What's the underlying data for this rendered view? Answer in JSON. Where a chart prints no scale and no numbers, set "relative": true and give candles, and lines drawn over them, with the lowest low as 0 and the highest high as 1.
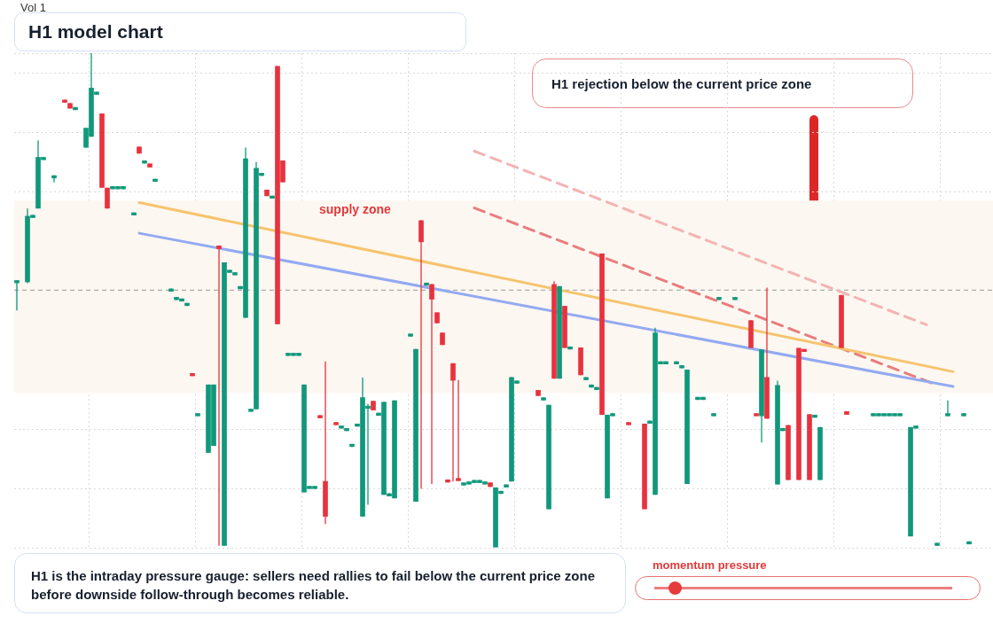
{
  "chart_data": {
    "type": "candlestick",
    "title": "H1 model chart",
    "relative": true,
    "grid": true,
    "legend": false,
    "colors": [
      "#12987b",
      null,
      "#12987b",
      "#12987b",
      "#12987b",
      "#12987b",
      null,
      "#12987b",
      null,
      "#e8333f",
      "#e8333f",
      "#12987b",
      null,
      "#12987b",
      "#12987b",
      "#12987b",
      "#e8333f",
      "#e8333f",
      "#12987b",
      "#12987b",
      "#12987b",
      null,
      "#12987b",
      "#e8333f",
      "#12987b",
      "#e8333f",
      "#12987b",
      null,
      null,
      "#12987b",
      "#12987b",
      "#12987b",
      "#12987b",
      "#e8333f",
      "#12987b",
      null,
      "#12987b",
      "#12987b",
      "#e8333f",
      "#12987b",
      "#12987b",
      "#12987b",
      "#12987b",
      "#12987b",
      "#12987b",
      "#12987b",
      "#12987b",
      "#e8333f",
      "#12987b",
      "#e8333f",
      "#e8333f",
      "#12987b",
      "#12987b",
      "#12987b",
      "#12987b",
      "#12987b",
      "#12987b",
      "#e8333f",
      "#e8333f",
      null,
      "#e8333f",
      "#12987b",
      "#12987b",
      "#12987b",
      "#12987b",
      "#12987b",
      "#12987b",
      "#e8333f",
      "#12987b",
      "#12987b",
      "#12987b",
      "#12987b",
      null,
      null,
      "#12987b",
      "#12987b",
      "#e8333f",
      "#12987b",
      "#e8333f",
      "#e8333f",
      "#e8333f",
      "#e8333f",
      "#e8333f",
      "#e8333f",
      "#12987b",
      "#12987b",
      "#12987b",
      "#12987b",
      "#12987b",
      "#e8333f",
      "#12987b",
      "#12987b",
      "#12987b",
      "#12987b",
      "#12987b",
      null,
      null,
      null,
      "#e8333f",
      "#12987b",
      "#12987b",
      "#e8333f",
      "#12987b",
      "#e8333f",
      "#12987b",
      null,
      "#e8333f",
      "#12987b",
      "#12987b",
      "#12987b",
      "#e8333f",
      "#12987b",
      "#12987b",
      null,
      null,
      "#e8333f",
      null,
      null,
      "#e8333f",
      "#12987b",
      "#12987b",
      "#12987b",
      "#12987b",
      null,
      "#12987b",
      "#12987b",
      "#12987b",
      null,
      "#12987b",
      "#12987b",
      null,
      "#12987b",
      "#12987b",
      null,
      null,
      "#12987b",
      null,
      null,
      "#e8333f",
      "#e8333f",
      "#12987b",
      "#e8333f",
      null,
      "#12987b",
      "#12987b",
      "#e8333f",
      null,
      "#e8333f",
      "#e8333f",
      "#e8333f",
      "#12987b",
      "#12987b",
      null,
      null,
      null,
      "#e8333f",
      "#e8333f",
      null,
      null,
      null,
      null,
      "#12987b",
      "#12987b",
      "#12987b",
      "#12987b",
      "#12987b",
      "#12987b",
      null,
      "#12987b",
      "#12987b",
      null,
      null,
      null,
      "#12987b",
      null,
      "#12987b",
      null,
      null,
      "#12987b",
      "#12987b",
      null,
      null,
      null,
      null
    ],
    "annotations": [
      "Vol 1",
      "H1 rejection below the current price zone",
      "supply zone",
      "momentum pressure",
      "H1 is the intraday pressure gauge: sellers need rallies to fail below the current price zone before downside follow-through becomes reliable."
    ],
    "categories": [
      null,
      null,
      null,
      null,
      null,
      null,
      null,
      null,
      null,
      null,
      null,
      null,
      null,
      null,
      null,
      null,
      null,
      null,
      null,
      null,
      null,
      null,
      null,
      null,
      null,
      null,
      null,
      null,
      null,
      null,
      null,
      null,
      null,
      null,
      null,
      null,
      null,
      null,
      null,
      null,
      null,
      null,
      null,
      null,
      null,
      null,
      null,
      null,
      null,
      null,
      null,
      null,
      null,
      null,
      null,
      null,
      null,
      null,
      null,
      null,
      null,
      null,
      null,
      null,
      null,
      null,
      null,
      null,
      null,
      null,
      null,
      null,
      null,
      null,
      null,
      null,
      null,
      null,
      null,
      null,
      null,
      null,
      null,
      null,
      null,
      null,
      null,
      null,
      null,
      null,
      null,
      null,
      null,
      null,
      null,
      null,
      null,
      null,
      null,
      null,
      null,
      null,
      null,
      null,
      null,
      null,
      null,
      null,
      null,
      null,
      null,
      null,
      null,
      null,
      null,
      null,
      null,
      null,
      null,
      null,
      null,
      null,
      null,
      null,
      null,
      null,
      null,
      null,
      null,
      null,
      null,
      null,
      null,
      null,
      null,
      null,
      null,
      null,
      null,
      null,
      null,
      null,
      null,
      null,
      null,
      null,
      null,
      null,
      null,
      null,
      null,
      null,
      null,
      null,
      null,
      null,
      null,
      null,
      null,
      null,
      null,
      null,
      null,
      null,
      null,
      null,
      null,
      null,
      null,
      null,
      null,
      null,
      null,
      null,
      null,
      null,
      null,
      null,
      null,
      null,
      null,
      null,
      null,
      null
    ],
    "ohlc": [
      [
        0.535,
        0.541,
        0.48,
        0.541
      ],
      null,
      [
        0.537,
        0.686,
        0.535,
        0.671
      ],
      [
        0.667,
        0.673,
        0.667,
        0.673
      ],
      [
        0.686,
        0.824,
        0.686,
        0.79
      ],
      [
        0.784,
        0.79,
        0.784,
        0.79
      ],
      null,
      [
        0.747,
        0.753,
        0.739,
        0.753
      ],
      null,
      [
        0.906,
        0.906,
        0.9,
        0.9
      ],
      [
        0.899,
        0.899,
        0.888,
        0.888
      ],
      [
        0.885,
        0.891,
        0.885,
        0.891
      ],
      null,
      [
        0.809,
        0.849,
        0.809,
        0.849
      ],
      [
        0.831,
        1,
        0.831,
        0.93
      ],
      [
        0.916,
        0.922,
        0.916,
        0.922
      ],
      [
        0.878,
        0.878,
        0.728,
        0.728
      ],
      [
        0.728,
        0.728,
        0.686,
        0.686
      ],
      [
        0.725,
        0.731,
        0.725,
        0.731
      ],
      [
        0.725,
        0.731,
        0.725,
        0.731
      ],
      [
        0.725,
        0.731,
        0.725,
        0.731
      ],
      null,
      [
        0.672,
        0.678,
        0.672,
        0.678
      ],
      [
        0.811,
        0.811,
        0.797,
        0.797
      ],
      [
        0.777,
        0.783,
        0.777,
        0.783
      ],
      [
        0.777,
        0.777,
        0.769,
        0.769
      ],
      [
        0.74,
        0.746,
        0.74,
        0.746
      ],
      null,
      null,
      [
        0.518,
        0.524,
        0.518,
        0.524
      ],
      [
        0.501,
        0.507,
        0.501,
        0.507
      ],
      [
        0.498,
        0.504,
        0.498,
        0.504
      ],
      [
        0.489,
        0.495,
        0.489,
        0.495
      ],
      [
        0.353,
        0.353,
        0.347,
        0.347
      ],
      [
        0.266,
        0.272,
        0.266,
        0.272
      ],
      null,
      [
        0.192,
        0.33,
        0.192,
        0.33
      ],
      [
        0.206,
        0.33,
        0.206,
        0.33
      ],
      [
        0.611,
        0.611,
        0.004,
        0.604
      ],
      [
        0.004,
        0.577,
        0.004,
        0.577
      ],
      [
        0.556,
        0.562,
        0.556,
        0.562
      ],
      [
        0.551,
        0.557,
        0.551,
        0.557
      ],
      [
        0.523,
        0.529,
        0.523,
        0.529
      ],
      [
        0.465,
        0.809,
        0.465,
        0.787
      ],
      [
        0.275,
        0.281,
        0.275,
        0.281
      ],
      [
        0.28,
        0.78,
        0.28,
        0.768
      ],
      [
        0.752,
        0.758,
        0.752,
        0.758
      ],
      [
        0.724,
        0.724,
        0.711,
        0.711
      ],
      [
        0.706,
        0.712,
        0.706,
        0.712
      ],
      [
        0.974,
        0.974,
        0.452,
        0.452
      ],
      [
        0.783,
        0.783,
        0.739,
        0.739
      ],
      [
        0.388,
        0.394,
        0.388,
        0.394
      ],
      [
        0.388,
        0.394,
        0.388,
        0.394
      ],
      [
        0.388,
        0.394,
        0.388,
        0.394
      ],
      [
        0.112,
        0.33,
        0.112,
        0.33
      ],
      [
        0.119,
        0.125,
        0.119,
        0.125
      ],
      [
        0.119,
        0.125,
        0.119,
        0.125
      ],
      [
        0.268,
        0.268,
        0.262,
        0.262
      ],
      [
        0.135,
        0.377,
        0.048,
        0.063
      ],
      null,
      [
        0.254,
        0.254,
        0.248,
        0.248
      ],
      [
        0.241,
        0.247,
        0.241,
        0.247
      ],
      [
        0.236,
        0.242,
        0.236,
        0.242
      ],
      [
        0.204,
        0.21,
        0.204,
        0.21
      ],
      [
        0.245,
        0.251,
        0.245,
        0.251
      ],
      [
        0.063,
        0.344,
        0.063,
        0.304
      ],
      [
        0.281,
        0.291,
        0.087,
        0.287
      ],
      [
        0.297,
        0.297,
        0.278,
        0.278
      ],
      [
        0.267,
        0.273,
        0.267,
        0.273
      ],
      [
        0.107,
        0.295,
        0.107,
        0.295
      ],
      [
        0.104,
        0.11,
        0.104,
        0.11
      ],
      [
        0.1,
        0.298,
        0.1,
        0.298
      ],
      null,
      null,
      [
        0.427,
        0.433,
        0.427,
        0.433
      ],
      [
        0.093,
        0.402,
        0.093,
        0.402
      ],
      [
        0.662,
        0.662,
        0.119,
        0.618
      ],
      [
        0.53,
        0.536,
        0.53,
        0.536
      ],
      [
        0.533,
        0.533,
        0.129,
        0.502
      ],
      [
        0.476,
        0.476,
        0.454,
        0.454
      ],
      [
        0.435,
        0.435,
        0.41,
        0.41
      ],
      [
        0.138,
        0.138,
        0.132,
        0.132
      ],
      [
        0.373,
        0.373,
        0.134,
        0.338
      ],
      [
        0.141,
        0.339,
        0.135,
        0.135
      ],
      [
        0.126,
        0.132,
        0.126,
        0.132
      ],
      [
        0.128,
        0.134,
        0.128,
        0.134
      ],
      [
        0.131,
        0.137,
        0.131,
        0.137
      ],
      [
        0.131,
        0.137,
        0.131,
        0.137
      ],
      [
        0.128,
        0.134,
        0.128,
        0.134
      ],
      [
        0.132,
        0.132,
        0.123,
        0.123
      ],
      [
        0,
        0.122,
        0,
        0.122
      ],
      [
        0.109,
        0.115,
        0.109,
        0.115
      ],
      [
        0.122,
        0.128,
        0.122,
        0.128
      ],
      [
        0.134,
        0.345,
        0.134,
        0.345
      ],
      [
        0.332,
        0.338,
        0.332,
        0.338
      ],
      null,
      null,
      null,
      [
        0.319,
        0.319,
        0.307,
        0.307
      ],
      [
        0.298,
        0.304,
        0.298,
        0.304
      ],
      [
        0.078,
        0.289,
        0.078,
        0.289
      ],
      [
        0.533,
        0.539,
        0.342,
        0.342
      ],
      [
        0.342,
        0.529,
        0.342,
        0.529
      ],
      [
        0.489,
        0.489,
        0.404,
        0.404
      ],
      [
        0.401,
        0.407,
        0.401,
        0.407
      ],
      null,
      [
        0.405,
        0.405,
        0.349,
        0.349
      ],
      [
        0.339,
        0.345,
        0.339,
        0.345
      ],
      [
        0.324,
        0.33,
        0.324,
        0.33
      ],
      [
        0.319,
        0.325,
        0.319,
        0.325
      ],
      [
        0.595,
        0.595,
        0.269,
        0.269
      ],
      [
        0.1,
        0.269,
        0.1,
        0.269
      ],
      [
        0.266,
        0.272,
        0.266,
        0.272
      ],
      null,
      null,
      [
        0.254,
        0.254,
        0.248,
        0.248
      ],
      null,
      null,
      [
        0.251,
        0.251,
        0.078,
        0.078
      ],
      [
        0.251,
        0.257,
        0.251,
        0.257
      ],
      [
        0.107,
        0.445,
        0.107,
        0.435
      ],
      [
        0.371,
        0.377,
        0.371,
        0.377
      ],
      [
        0.371,
        0.377,
        0.371,
        0.377
      ],
      null,
      [
        0.371,
        0.377,
        0.371,
        0.377
      ],
      [
        0.363,
        0.369,
        0.363,
        0.369
      ],
      [
        0.129,
        0.36,
        0.129,
        0.36
      ],
      null,
      [
        0.299,
        0.305,
        0.299,
        0.305
      ],
      [
        0.299,
        0.305,
        0.299,
        0.305
      ],
      null,
      [
        0.266,
        0.272,
        0.266,
        0.272
      ],
      [
        0.501,
        0.507,
        0.501,
        0.507
      ],
      null,
      null,
      [
        0.501,
        0.507,
        0.501,
        0.507
      ],
      null,
      null,
      [
        0.46,
        0.46,
        0.404,
        0.404
      ],
      [
        0.272,
        0.272,
        0.266,
        0.266
      ],
      [
        0.266,
        0.401,
        0.213,
        0.401
      ],
      [
        0.345,
        0.526,
        0.261,
        0.261
      ],
      null,
      [
        0.128,
        0.338,
        0.128,
        0.329
      ],
      [
        0.236,
        0.242,
        0.236,
        0.242
      ],
      [
        0.248,
        0.248,
        0.137,
        0.137
      ],
      null,
      [
        0.404,
        0.404,
        0.137,
        0.137
      ],
      [
        0.402,
        0.402,
        0.396,
        0.396
      ],
      [
        0.27,
        0.27,
        0.137,
        0.137
      ],
      [
        0.263,
        0.269,
        0.263,
        0.269
      ],
      [
        0.137,
        0.244,
        0.137,
        0.244
      ],
      null,
      null,
      null,
      [
        0.511,
        0.511,
        0.404,
        0.404
      ],
      [
        0.276,
        0.276,
        0.269,
        0.269
      ],
      null,
      null,
      null,
      null,
      [
        0.266,
        0.272,
        0.266,
        0.272
      ],
      [
        0.266,
        0.272,
        0.266,
        0.272
      ],
      [
        0.266,
        0.272,
        0.266,
        0.272
      ],
      [
        0.266,
        0.272,
        0.266,
        0.272
      ],
      [
        0.266,
        0.272,
        0.266,
        0.272
      ],
      [
        0.266,
        0.272,
        0.266,
        0.272
      ],
      null,
      [
        0.023,
        0.244,
        0.023,
        0.244
      ],
      [
        0.241,
        0.247,
        0.241,
        0.247
      ],
      null,
      null,
      null,
      [
        0.004,
        0.01,
        0.004,
        0.01
      ],
      null,
      [
        0.266,
        0.298,
        0.266,
        0.272
      ],
      null,
      null,
      [
        0.266,
        0.272,
        0.266,
        0.272
      ],
      [
        0.007,
        0.013,
        0.007,
        0.013
      ],
      null,
      null,
      null,
      null
    ],
    "series": [
      {
        "type": "line",
        "color": "#f6c46e",
        "values": [
          null,
          null,
          null,
          null,
          null,
          null,
          null,
          null,
          null,
          null,
          null,
          null,
          null,
          null,
          null,
          null,
          null,
          null,
          null,
          null,
          null,
          null,
          null,
          0.698,
          null,
          null,
          null,
          null,
          null,
          null,
          null,
          null,
          null,
          null,
          null,
          null,
          null,
          null,
          null,
          null,
          null,
          null,
          null,
          null,
          null,
          null,
          null,
          null,
          null,
          null,
          null,
          null,
          null,
          null,
          null,
          null,
          null,
          null,
          null,
          null,
          null,
          null,
          null,
          null,
          null,
          null,
          null,
          null,
          null,
          null,
          null,
          null,
          null,
          null,
          null,
          null,
          null,
          null,
          null,
          null,
          null,
          null,
          null,
          null,
          null,
          null,
          null,
          null,
          null,
          null,
          null,
          null,
          null,
          null,
          null,
          null,
          null,
          null,
          null,
          null,
          null,
          null,
          null,
          null,
          null,
          null,
          null,
          null,
          null,
          null,
          null,
          null,
          null,
          null,
          null,
          null,
          null,
          null,
          null,
          null,
          null,
          null,
          null,
          null,
          null,
          null,
          null,
          null,
          null,
          null,
          null,
          null,
          null,
          null,
          null,
          null,
          null,
          null,
          null,
          null,
          null,
          null,
          null,
          null,
          null,
          null,
          null,
          null,
          null,
          null,
          null,
          null,
          null,
          null,
          null,
          null,
          null,
          null,
          null,
          null,
          null,
          null,
          null,
          null,
          null,
          null,
          null,
          null,
          null,
          null,
          null,
          null,
          null,
          null,
          null,
          null,
          0.356,
          null,
          null,
          null,
          null,
          null,
          null,
          null
        ]
      },
      {
        "type": "line",
        "color": "#93aaf2",
        "values": [
          null,
          null,
          null,
          null,
          null,
          null,
          null,
          null,
          null,
          null,
          null,
          null,
          null,
          null,
          null,
          null,
          null,
          null,
          null,
          null,
          null,
          null,
          null,
          0.636,
          null,
          null,
          null,
          null,
          null,
          null,
          null,
          null,
          null,
          null,
          null,
          null,
          null,
          null,
          null,
          null,
          null,
          null,
          null,
          null,
          null,
          null,
          null,
          null,
          null,
          null,
          null,
          null,
          null,
          null,
          null,
          null,
          null,
          null,
          null,
          null,
          null,
          null,
          null,
          null,
          null,
          null,
          null,
          null,
          null,
          null,
          null,
          null,
          null,
          null,
          null,
          null,
          null,
          null,
          null,
          null,
          null,
          null,
          null,
          null,
          null,
          null,
          null,
          null,
          null,
          null,
          null,
          null,
          null,
          null,
          null,
          null,
          null,
          null,
          null,
          null,
          null,
          null,
          null,
          null,
          null,
          null,
          null,
          null,
          null,
          null,
          null,
          null,
          null,
          null,
          null,
          null,
          null,
          null,
          null,
          null,
          null,
          null,
          null,
          null,
          null,
          null,
          null,
          null,
          null,
          null,
          null,
          null,
          null,
          null,
          null,
          null,
          null,
          null,
          null,
          null,
          null,
          null,
          null,
          null,
          null,
          null,
          null,
          null,
          null,
          null,
          null,
          null,
          null,
          null,
          null,
          null,
          null,
          null,
          null,
          null,
          null,
          null,
          null,
          null,
          null,
          null,
          null,
          null,
          null,
          null,
          null,
          null,
          null,
          null,
          null,
          null,
          0.326,
          null,
          null,
          null,
          null,
          null,
          null,
          null
        ]
      },
      {
        "type": "line",
        "color": "#e97d7d",
        "line_style": "dashed",
        "values": [
          null,
          null,
          null,
          null,
          null,
          null,
          null,
          null,
          null,
          null,
          null,
          null,
          null,
          null,
          null,
          null,
          null,
          null,
          null,
          null,
          null,
          null,
          null,
          null,
          null,
          null,
          null,
          null,
          null,
          null,
          null,
          null,
          null,
          null,
          null,
          null,
          null,
          null,
          null,
          null,
          null,
          null,
          null,
          null,
          null,
          null,
          null,
          null,
          null,
          null,
          null,
          null,
          null,
          null,
          null,
          null,
          null,
          null,
          null,
          null,
          null,
          null,
          null,
          null,
          null,
          null,
          null,
          null,
          null,
          null,
          null,
          null,
          null,
          null,
          null,
          null,
          null,
          null,
          null,
          null,
          null,
          null,
          null,
          null,
          null,
          null,
          0.687,
          null,
          null,
          null,
          null,
          null,
          null,
          null,
          null,
          null,
          null,
          null,
          null,
          null,
          null,
          null,
          null,
          null,
          null,
          null,
          null,
          null,
          null,
          null,
          null,
          null,
          null,
          null,
          null,
          null,
          null,
          null,
          null,
          null,
          null,
          null,
          null,
          null,
          null,
          null,
          null,
          null,
          null,
          null,
          null,
          null,
          null,
          null,
          null,
          null,
          null,
          null,
          null,
          null,
          null,
          null,
          null,
          null,
          null,
          null,
          null,
          null,
          null,
          null,
          null,
          null,
          null,
          null,
          null,
          null,
          null,
          null,
          null,
          null,
          null,
          null,
          null,
          null,
          null,
          null,
          null,
          null,
          null,
          null,
          null,
          null,
          0.333,
          null,
          null,
          null,
          null,
          null,
          null,
          null,
          null,
          null,
          null,
          null
        ]
      },
      {
        "type": "line",
        "color": "#f4b3b3",
        "line_style": "dashed",
        "values": [
          null,
          null,
          null,
          null,
          null,
          null,
          null,
          null,
          null,
          null,
          null,
          null,
          null,
          null,
          null,
          null,
          null,
          null,
          null,
          null,
          null,
          null,
          null,
          null,
          null,
          null,
          null,
          null,
          null,
          null,
          null,
          null,
          null,
          null,
          null,
          null,
          null,
          null,
          null,
          null,
          null,
          null,
          null,
          null,
          null,
          null,
          null,
          null,
          null,
          null,
          null,
          null,
          null,
          null,
          null,
          null,
          null,
          null,
          null,
          null,
          null,
          null,
          null,
          null,
          null,
          null,
          null,
          null,
          null,
          null,
          null,
          null,
          null,
          null,
          null,
          null,
          null,
          null,
          null,
          null,
          null,
          null,
          null,
          null,
          null,
          null,
          0.802,
          null,
          null,
          null,
          null,
          null,
          null,
          null,
          null,
          null,
          null,
          null,
          null,
          null,
          null,
          null,
          null,
          null,
          null,
          null,
          null,
          null,
          null,
          null,
          null,
          null,
          null,
          null,
          null,
          null,
          null,
          null,
          null,
          null,
          null,
          null,
          null,
          null,
          null,
          null,
          null,
          null,
          null,
          null,
          null,
          null,
          null,
          null,
          null,
          null,
          null,
          null,
          null,
          null,
          null,
          null,
          null,
          null,
          null,
          null,
          null,
          null,
          null,
          null,
          null,
          null,
          null,
          null,
          null,
          null,
          null,
          null,
          null,
          null,
          null,
          null,
          null,
          null,
          null,
          null,
          null,
          null,
          null,
          null,
          null,
          0.451,
          null,
          null,
          null,
          null,
          null,
          null,
          null,
          null,
          null,
          null,
          null,
          null
        ]
      }
    ],
    "ref_lines": [
      {
        "axis": "y",
        "value": 0.521,
        "color": "#9a9a9a",
        "line_style": "dashed"
      }
    ],
    "bands": [
      {
        "axis": "y",
        "from": 0.313,
        "to": 0.702,
        "color": "#fdf7f1"
      }
    ]
  }
}
